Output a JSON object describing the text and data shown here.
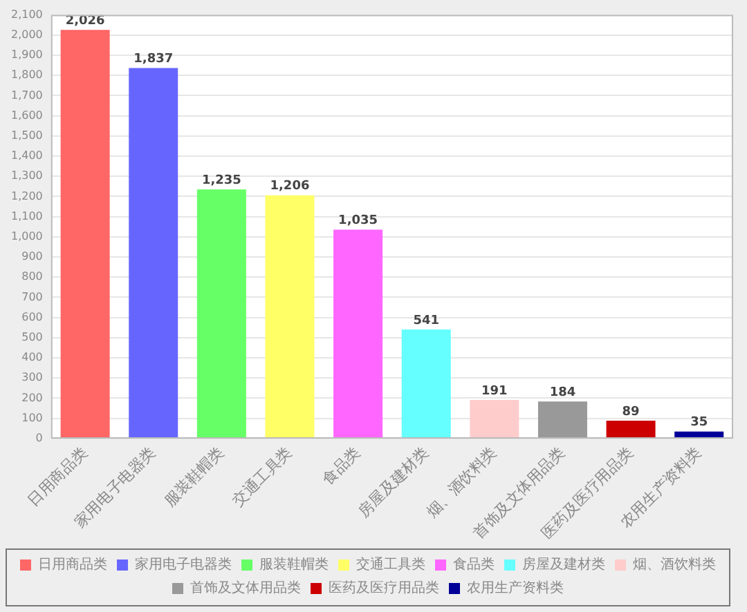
{
  "chart_data": {
    "type": "bar",
    "stacked": true,
    "categories": [
      "日用商品类",
      "家用电子电器类",
      "服装鞋帽类",
      "交通工具类",
      "食品类",
      "房屋及建材类",
      "烟、酒饮料类",
      "首饰及文体用品类",
      "医药及医疗用品类",
      "农用生产资料类"
    ],
    "series": [
      {
        "name": "日用商品类",
        "color": "#ff6666",
        "values": [
          2026,
          null,
          null,
          null,
          null,
          null,
          null,
          null,
          null,
          null
        ],
        "value_labels": [
          "2,026",
          null,
          null,
          null,
          null,
          null,
          null,
          null,
          null,
          null
        ]
      },
      {
        "name": "家用电子电器类",
        "color": "#6666ff",
        "values": [
          null,
          1837,
          null,
          null,
          null,
          null,
          null,
          null,
          null,
          null
        ],
        "value_labels": [
          null,
          "1,837",
          null,
          null,
          null,
          null,
          null,
          null,
          null,
          null
        ]
      },
      {
        "name": "服装鞋帽类",
        "color": "#66ff66",
        "values": [
          null,
          null,
          1235,
          null,
          null,
          null,
          null,
          null,
          null,
          null
        ],
        "value_labels": [
          null,
          null,
          "1,235",
          null,
          null,
          null,
          null,
          null,
          null,
          null
        ]
      },
      {
        "name": "交通工具类",
        "color": "#ffff66",
        "values": [
          null,
          null,
          null,
          1206,
          null,
          null,
          null,
          null,
          null,
          null
        ],
        "value_labels": [
          null,
          null,
          null,
          "1,206",
          null,
          null,
          null,
          null,
          null,
          null
        ]
      },
      {
        "name": "食品类",
        "color": "#ff66ff",
        "values": [
          null,
          null,
          null,
          null,
          1035,
          null,
          null,
          null,
          null,
          null
        ],
        "value_labels": [
          null,
          null,
          null,
          null,
          "1,035",
          null,
          null,
          null,
          null,
          null
        ]
      },
      {
        "name": "房屋及建材类",
        "color": "#66ffff",
        "values": [
          null,
          null,
          null,
          null,
          null,
          541,
          null,
          null,
          null,
          null
        ],
        "value_labels": [
          null,
          null,
          null,
          null,
          null,
          "541",
          null,
          null,
          null,
          null
        ]
      },
      {
        "name": "烟、酒饮料类",
        "color": "#ffcccc",
        "values": [
          null,
          null,
          null,
          null,
          null,
          null,
          191,
          null,
          null,
          null
        ],
        "value_labels": [
          null,
          null,
          null,
          null,
          null,
          null,
          "191",
          null,
          null,
          null
        ]
      },
      {
        "name": "首饰及文体用品类",
        "color": "#999999",
        "values": [
          null,
          null,
          null,
          null,
          null,
          null,
          null,
          184,
          null,
          null
        ],
        "value_labels": [
          null,
          null,
          null,
          null,
          null,
          null,
          null,
          "184",
          null,
          null
        ]
      },
      {
        "name": "医药及医疗用品类",
        "color": "#cc0000",
        "values": [
          null,
          null,
          null,
          null,
          null,
          null,
          null,
          null,
          89,
          null
        ],
        "value_labels": [
          null,
          null,
          null,
          null,
          null,
          null,
          null,
          null,
          "89",
          null
        ]
      },
      {
        "name": "农用生产资料类",
        "color": "#000099",
        "values": [
          null,
          null,
          null,
          null,
          null,
          null,
          null,
          null,
          null,
          35
        ],
        "value_labels": [
          null,
          null,
          null,
          null,
          null,
          null,
          null,
          null,
          null,
          "35"
        ]
      }
    ],
    "ylim": [
      0,
      2100
    ],
    "yticks": [
      0,
      100,
      200,
      300,
      400,
      500,
      600,
      700,
      800,
      900,
      {
        "value": 1000,
        "label": "1,000"
      },
      {
        "value": 1100,
        "label": "1,100"
      },
      {
        "value": 1200,
        "label": "1,200"
      },
      {
        "value": 1300,
        "label": "1,300"
      },
      {
        "value": 1400,
        "label": "1,400"
      },
      {
        "value": 1500,
        "label": "1,500"
      },
      {
        "value": 1600,
        "label": "1,600"
      },
      {
        "value": 1700,
        "label": "1,700"
      },
      {
        "value": 1800,
        "label": "1,800"
      },
      {
        "value": 1900,
        "label": "1,900"
      },
      {
        "value": 2000,
        "label": "2,000"
      },
      {
        "value": 2100,
        "label": "2,100"
      }
    ],
    "grid": "y",
    "legend": "bottom"
  }
}
